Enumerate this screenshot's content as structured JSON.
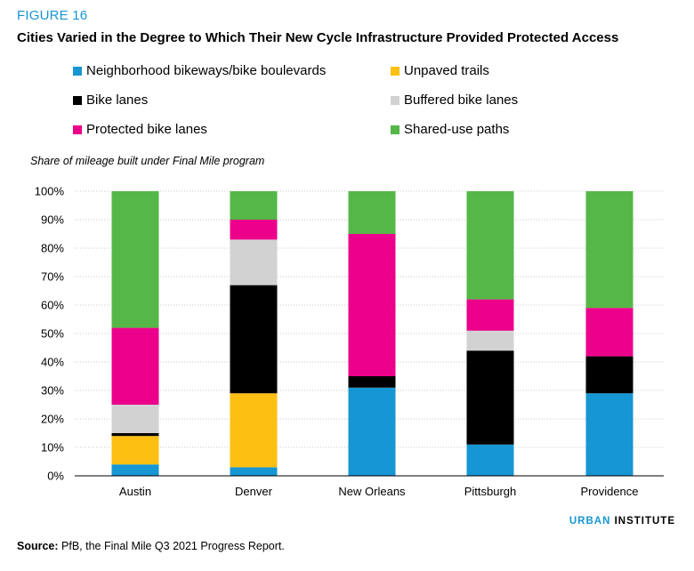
{
  "figure_label": "FIGURE 16",
  "title": "Cities Varied in the Degree to Which Their New Cycle Infrastructure Provided Protected Access",
  "brand": {
    "part1": "URBAN",
    "part2": "INSTITUTE"
  },
  "source": {
    "label": "Source:",
    "text": "PfB, the Final Mile Q3 2021 Progress Report."
  },
  "chart_data": {
    "type": "bar",
    "stacked": true,
    "ylabel": "Share of mileage built under Final Mile program",
    "ylim": [
      0,
      100
    ],
    "yticks": [
      "0%",
      "10%",
      "20%",
      "30%",
      "40%",
      "50%",
      "60%",
      "70%",
      "80%",
      "90%",
      "100%"
    ],
    "grid": true,
    "legend_position": "top",
    "categories": [
      "Austin",
      "Denver",
      "New Orleans",
      "Pittsburgh",
      "Providence"
    ],
    "series": [
      {
        "name": "Neighborhood bikeways/bike boulevards",
        "color": "#1696d2",
        "values": [
          4,
          3,
          31,
          11,
          29
        ]
      },
      {
        "name": "Unpaved trails",
        "color": "#fdbf11",
        "values": [
          10,
          26,
          0,
          0,
          0
        ]
      },
      {
        "name": "Bike lanes",
        "color": "#000000",
        "values": [
          1,
          38,
          4,
          33,
          13
        ]
      },
      {
        "name": "Buffered bike lanes",
        "color": "#d2d2d2",
        "values": [
          10,
          16,
          0,
          7,
          0
        ]
      },
      {
        "name": "Protected bike lanes",
        "color": "#ec008b",
        "values": [
          27,
          7,
          50,
          11,
          17
        ]
      },
      {
        "name": "Shared-use paths",
        "color": "#55b748",
        "values": [
          48,
          10,
          15,
          38,
          41
        ]
      }
    ]
  }
}
